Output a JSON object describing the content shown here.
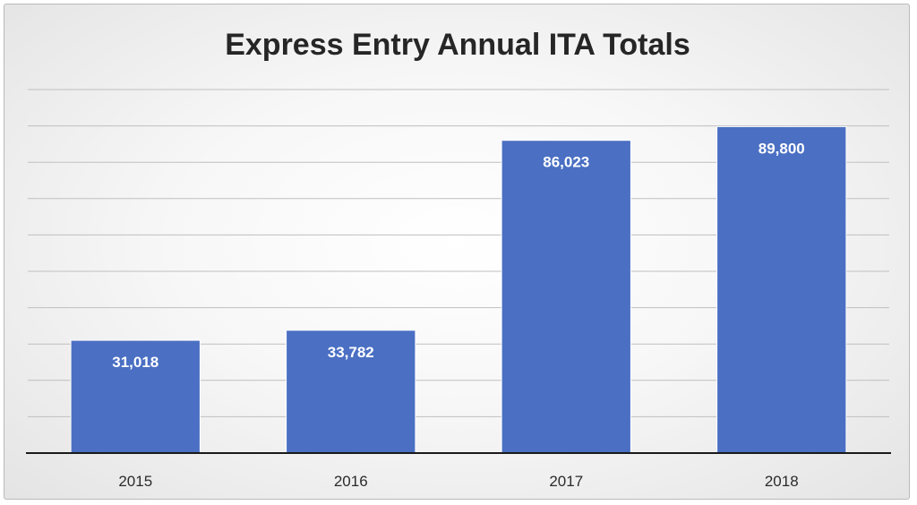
{
  "chart_data": {
    "type": "bar",
    "title": "Express Entry Annual ITA Totals",
    "categories": [
      "2015",
      "2016",
      "2017",
      "2018"
    ],
    "values": [
      31018,
      33782,
      86023,
      89800
    ],
    "data_labels": [
      "31,018",
      "33,782",
      "86,023",
      "89,800"
    ],
    "ylim": [
      0,
      100000
    ],
    "gridlines": true,
    "legend": "none",
    "xlabel": "",
    "ylabel": "",
    "colors": {
      "bar": "#4a6fc3",
      "bar_edge": "#ffffff",
      "grid": "#bfbfbf",
      "axis": "#1a1a1a"
    }
  }
}
